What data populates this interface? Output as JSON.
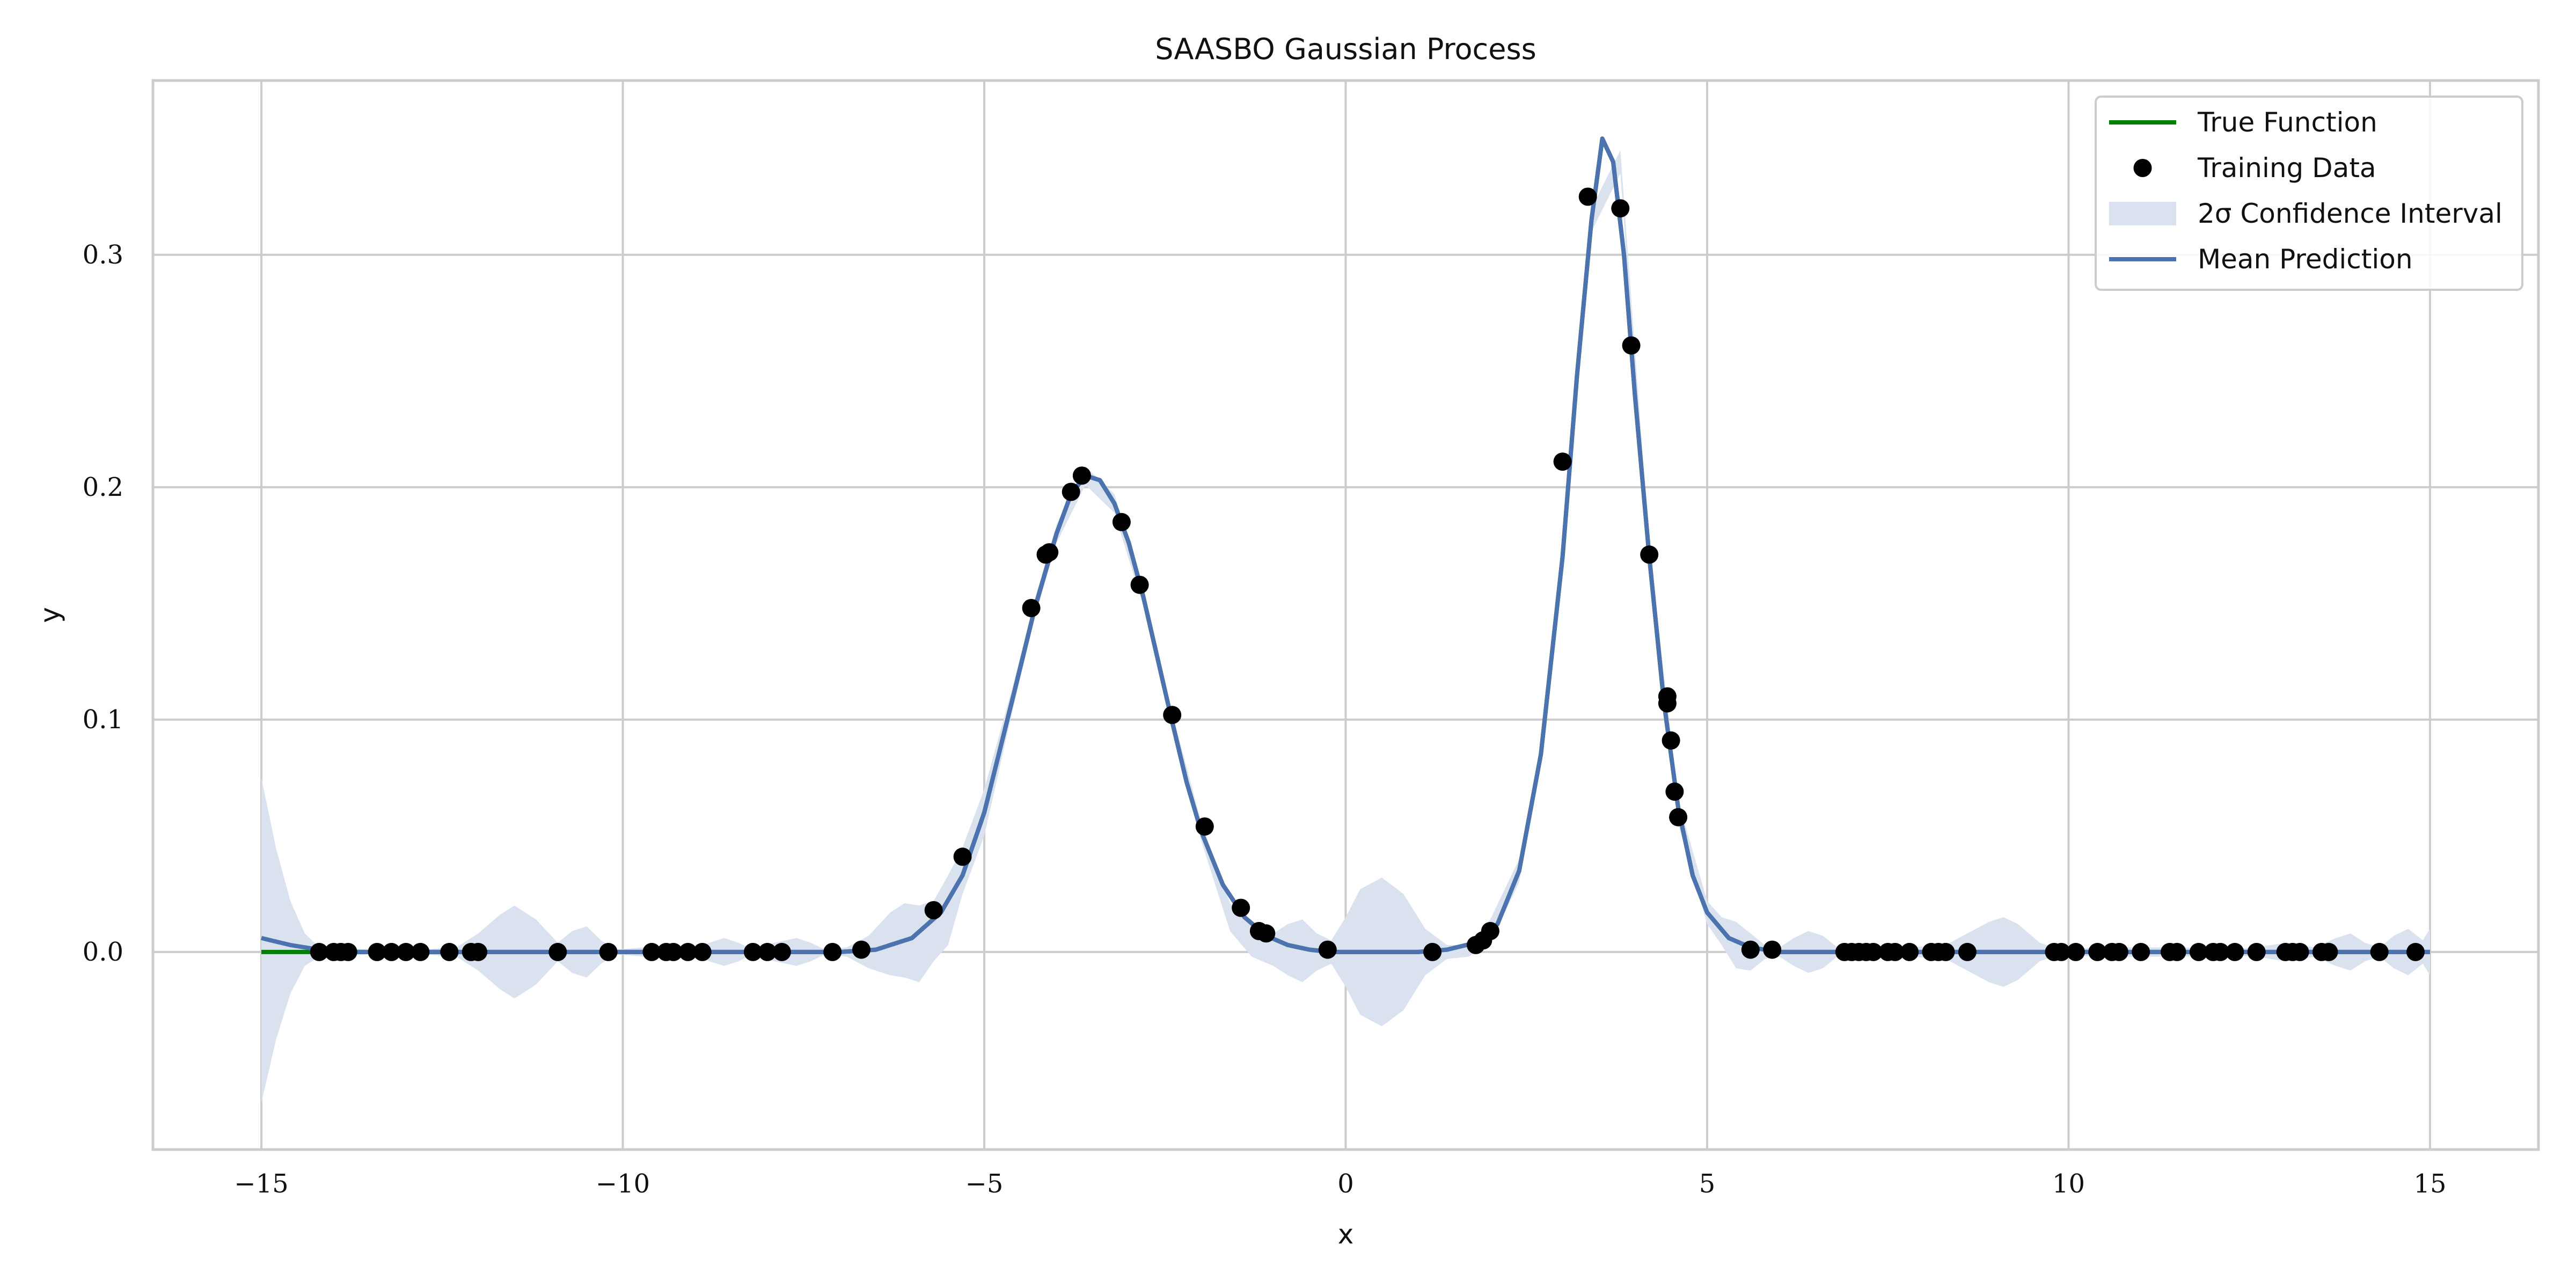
{
  "chart_data": {
    "type": "line",
    "title": "SAASBO Gaussian Process",
    "xlabel": "x",
    "ylabel": "y",
    "xlim": [
      -16.5,
      16.5
    ],
    "ylim": [
      -0.085,
      0.375
    ],
    "xticks": [
      -15,
      -10,
      -5,
      0,
      5,
      10,
      15
    ],
    "xtick_labels": [
      "−15",
      "−10",
      "−5",
      "0",
      "5",
      "10",
      "15"
    ],
    "yticks": [
      0.0,
      0.1,
      0.2,
      0.3
    ],
    "ytick_labels": [
      "0.0",
      "0.1",
      "0.2",
      "0.3"
    ],
    "grid": true,
    "legend": {
      "position": "top-right",
      "entries": [
        "True Function",
        "Training Data",
        "2σ Confidence Interval",
        "Mean Prediction"
      ]
    },
    "colors": {
      "true_function": "#008000",
      "training_data": "#000000",
      "confidence_interval": "#dbe2ef",
      "mean_prediction": "#4c72b0",
      "grid": "#cccccc",
      "spine": "#cccccc"
    },
    "series": [
      {
        "name": "True Function",
        "x": [
          -15,
          -14,
          -13,
          -12,
          -11,
          -10,
          -9,
          -8,
          -7,
          -6.5,
          -6,
          -5.6,
          -5.3,
          -5,
          -4.6,
          -4.3,
          -4,
          -3.8,
          -3.6,
          -3.4,
          -3.2,
          -3,
          -2.8,
          -2.6,
          -2.4,
          -2.2,
          -2,
          -1.7,
          -1.4,
          -1.1,
          -0.8,
          -0.5,
          -0.2,
          0.2,
          0.6,
          1,
          1.4,
          1.8,
          2.1,
          2.4,
          2.7,
          3.0,
          3.2,
          3.4,
          3.55,
          3.7,
          3.85,
          4.0,
          4.2,
          4.4,
          4.6,
          4.8,
          5.0,
          5.3,
          5.6,
          6,
          7,
          8,
          9,
          10,
          11,
          12,
          13,
          14,
          15
        ],
        "y": [
          0,
          0,
          0,
          0,
          0,
          0,
          0,
          0,
          0,
          0.001,
          0.006,
          0.017,
          0.033,
          0.06,
          0.11,
          0.148,
          0.18,
          0.197,
          0.205,
          0.203,
          0.193,
          0.176,
          0.153,
          0.126,
          0.099,
          0.073,
          0.052,
          0.029,
          0.015,
          0.007,
          0.003,
          0.001,
          0,
          0,
          0,
          0,
          0.001,
          0.004,
          0.012,
          0.035,
          0.085,
          0.17,
          0.248,
          0.315,
          0.35,
          0.34,
          0.3,
          0.24,
          0.17,
          0.108,
          0.062,
          0.033,
          0.017,
          0.006,
          0.002,
          0,
          0,
          0,
          0,
          0,
          0,
          0,
          0,
          0,
          0
        ]
      },
      {
        "name": "Mean Prediction",
        "x": [
          -15,
          -14.6,
          -14.2,
          -14,
          -13,
          -12,
          -11,
          -10,
          -9,
          -8,
          -7,
          -6.5,
          -6,
          -5.6,
          -5.3,
          -5,
          -4.6,
          -4.3,
          -4,
          -3.8,
          -3.6,
          -3.4,
          -3.2,
          -3,
          -2.8,
          -2.6,
          -2.4,
          -2.2,
          -2,
          -1.7,
          -1.4,
          -1.1,
          -0.8,
          -0.5,
          -0.2,
          0.2,
          0.6,
          1,
          1.4,
          1.8,
          2.1,
          2.4,
          2.7,
          3.0,
          3.2,
          3.4,
          3.55,
          3.7,
          3.85,
          4.0,
          4.2,
          4.4,
          4.6,
          4.8,
          5.0,
          5.3,
          5.6,
          6,
          7,
          8,
          9,
          10,
          11,
          12,
          13,
          14,
          15
        ],
        "y": [
          0.006,
          0.003,
          0.001,
          0,
          0,
          0,
          0,
          0,
          0,
          0,
          0,
          0.001,
          0.006,
          0.017,
          0.033,
          0.06,
          0.11,
          0.148,
          0.18,
          0.197,
          0.205,
          0.203,
          0.193,
          0.176,
          0.153,
          0.126,
          0.099,
          0.073,
          0.052,
          0.029,
          0.015,
          0.007,
          0.003,
          0.001,
          0,
          0,
          0,
          0,
          0.001,
          0.004,
          0.012,
          0.035,
          0.085,
          0.17,
          0.248,
          0.315,
          0.35,
          0.34,
          0.3,
          0.24,
          0.17,
          0.108,
          0.062,
          0.033,
          0.017,
          0.006,
          0.002,
          0,
          0,
          0,
          0,
          0,
          0,
          0,
          0,
          0,
          0
        ]
      },
      {
        "name": "Training Data",
        "type": "scatter",
        "x": [
          -14.2,
          -14.0,
          -13.9,
          -13.8,
          -13.4,
          -13.2,
          -13.0,
          -12.8,
          -12.4,
          -12.1,
          -12.0,
          -10.9,
          -10.2,
          -9.6,
          -9.4,
          -9.3,
          -9.1,
          -8.9,
          -8.2,
          -8.0,
          -7.8,
          -7.1,
          -6.7,
          -5.7,
          -5.3,
          -4.35,
          -4.15,
          -4.1,
          -3.8,
          -3.65,
          -3.1,
          -2.85,
          -2.4,
          -1.95,
          -1.45,
          -1.2,
          -1.1,
          -0.25,
          1.2,
          1.8,
          1.9,
          2.0,
          3.0,
          3.35,
          3.8,
          3.95,
          4.2,
          4.45,
          4.45,
          4.5,
          4.55,
          4.6,
          5.6,
          5.9,
          6.9,
          7.0,
          7.1,
          7.2,
          7.3,
          7.5,
          7.6,
          7.8,
          8.1,
          8.2,
          8.3,
          8.6,
          9.8,
          9.9,
          10.1,
          10.4,
          10.6,
          10.7,
          11.0,
          11.4,
          11.5,
          11.8,
          12.0,
          12.1,
          12.3,
          12.6,
          13.0,
          13.1,
          13.2,
          13.5,
          13.6,
          14.3,
          14.8
        ],
        "y": [
          0,
          0,
          0,
          0,
          0,
          0,
          0,
          0,
          0,
          0,
          0,
          0,
          0,
          0,
          0,
          0,
          0,
          0,
          0,
          0,
          0,
          0,
          0.001,
          0.018,
          0.041,
          0.148,
          0.171,
          0.172,
          0.198,
          0.205,
          0.185,
          0.158,
          0.102,
          0.054,
          0.019,
          0.009,
          0.008,
          0.001,
          0,
          0.003,
          0.005,
          0.009,
          0.211,
          0.325,
          0.32,
          0.261,
          0.171,
          0.11,
          0.107,
          0.091,
          0.069,
          0.058,
          0.001,
          0.001,
          0,
          0,
          0,
          0,
          0,
          0,
          0,
          0,
          0,
          0,
          0,
          0,
          0,
          0,
          0,
          0,
          0,
          0,
          0,
          0,
          0,
          0,
          0,
          0,
          0,
          0,
          0,
          0,
          0,
          0,
          0,
          0,
          0
        ]
      }
    ],
    "confidence_interval": {
      "name": "2σ Confidence Interval",
      "x": [
        -15,
        -14.8,
        -14.6,
        -14.4,
        -14.2,
        -13.5,
        -12.8,
        -12.3,
        -12.0,
        -11.7,
        -11.5,
        -11.2,
        -10.9,
        -10.7,
        -10.5,
        -10.3,
        -10.1,
        -9.7,
        -9.3,
        -9.0,
        -8.8,
        -8.6,
        -8.4,
        -8.2,
        -7.9,
        -7.6,
        -7.4,
        -7.2,
        -6.9,
        -6.6,
        -6.3,
        -6.1,
        -5.9,
        -5.7,
        -5.5,
        -5.3,
        -5.0,
        -4.6,
        -4.3,
        -4.0,
        -3.6,
        -3.2,
        -2.8,
        -2.4,
        -2.0,
        -1.6,
        -1.3,
        -1.0,
        -0.8,
        -0.6,
        -0.4,
        -0.2,
        0.0,
        0.2,
        0.5,
        0.8,
        1.1,
        1.4,
        1.7,
        2.0,
        2.4,
        2.7,
        3.0,
        3.4,
        3.8,
        4.2,
        4.6,
        5.0,
        5.2,
        5.4,
        5.6,
        5.8,
        6.0,
        6.2,
        6.4,
        6.6,
        6.8,
        7.2,
        7.8,
        8.3,
        8.6,
        8.9,
        9.1,
        9.3,
        9.6,
        9.9,
        10.4,
        11.0,
        11.6,
        12.1,
        12.6,
        13.0,
        13.4,
        13.7,
        13.9,
        14.1,
        14.3,
        14.5,
        14.7,
        14.9,
        15.0
      ],
      "upper": [
        0.075,
        0.045,
        0.022,
        0.008,
        0.002,
        0.001,
        0.001,
        0.002,
        0.008,
        0.016,
        0.02,
        0.014,
        0.004,
        0.009,
        0.011,
        0.005,
        0.001,
        0.002,
        0.003,
        0.002,
        0.004,
        0.006,
        0.004,
        0.001,
        0.004,
        0.006,
        0.004,
        0.001,
        0.002,
        0.007,
        0.017,
        0.021,
        0.02,
        0.022,
        0.033,
        0.045,
        0.07,
        0.115,
        0.152,
        0.184,
        0.209,
        0.197,
        0.157,
        0.103,
        0.056,
        0.021,
        0.011,
        0.008,
        0.012,
        0.014,
        0.008,
        0.005,
        0.015,
        0.027,
        0.032,
        0.025,
        0.01,
        0.003,
        0.003,
        0.014,
        0.04,
        0.09,
        0.175,
        0.32,
        0.345,
        0.175,
        0.065,
        0.022,
        0.015,
        0.013,
        0.008,
        0.003,
        0.002,
        0.006,
        0.009,
        0.007,
        0.002,
        0.001,
        0.002,
        0.003,
        0.008,
        0.013,
        0.015,
        0.012,
        0.004,
        0.001,
        0.002,
        0.002,
        0.002,
        0.001,
        0.002,
        0.004,
        0.002,
        0.006,
        0.008,
        0.004,
        0.002,
        0.007,
        0.01,
        0.005,
        0.01
      ],
      "lower": [
        -0.065,
        -0.038,
        -0.018,
        -0.006,
        -0.002,
        -0.001,
        -0.001,
        -0.002,
        -0.008,
        -0.016,
        -0.02,
        -0.014,
        -0.004,
        -0.009,
        -0.011,
        -0.005,
        -0.001,
        -0.002,
        -0.003,
        -0.002,
        -0.004,
        -0.006,
        -0.004,
        -0.001,
        -0.004,
        -0.006,
        -0.004,
        -0.001,
        -0.002,
        -0.007,
        -0.01,
        -0.011,
        -0.013,
        -0.004,
        0.003,
        0.025,
        0.05,
        0.105,
        0.144,
        0.176,
        0.201,
        0.189,
        0.149,
        0.095,
        0.048,
        0.009,
        -0.002,
        -0.006,
        -0.01,
        -0.013,
        -0.008,
        -0.005,
        -0.015,
        -0.027,
        -0.032,
        -0.025,
        -0.01,
        -0.003,
        -0.002,
        0.004,
        0.03,
        0.08,
        0.165,
        0.31,
        0.335,
        0.165,
        0.055,
        0.012,
        0.003,
        -0.007,
        -0.008,
        -0.003,
        -0.002,
        -0.006,
        -0.009,
        -0.007,
        -0.002,
        -0.001,
        -0.002,
        -0.003,
        -0.008,
        -0.013,
        -0.015,
        -0.012,
        -0.004,
        -0.001,
        -0.002,
        -0.002,
        -0.002,
        -0.001,
        -0.002,
        -0.004,
        -0.002,
        -0.006,
        -0.008,
        -0.004,
        -0.002,
        -0.007,
        -0.01,
        -0.005,
        -0.01
      ]
    }
  }
}
